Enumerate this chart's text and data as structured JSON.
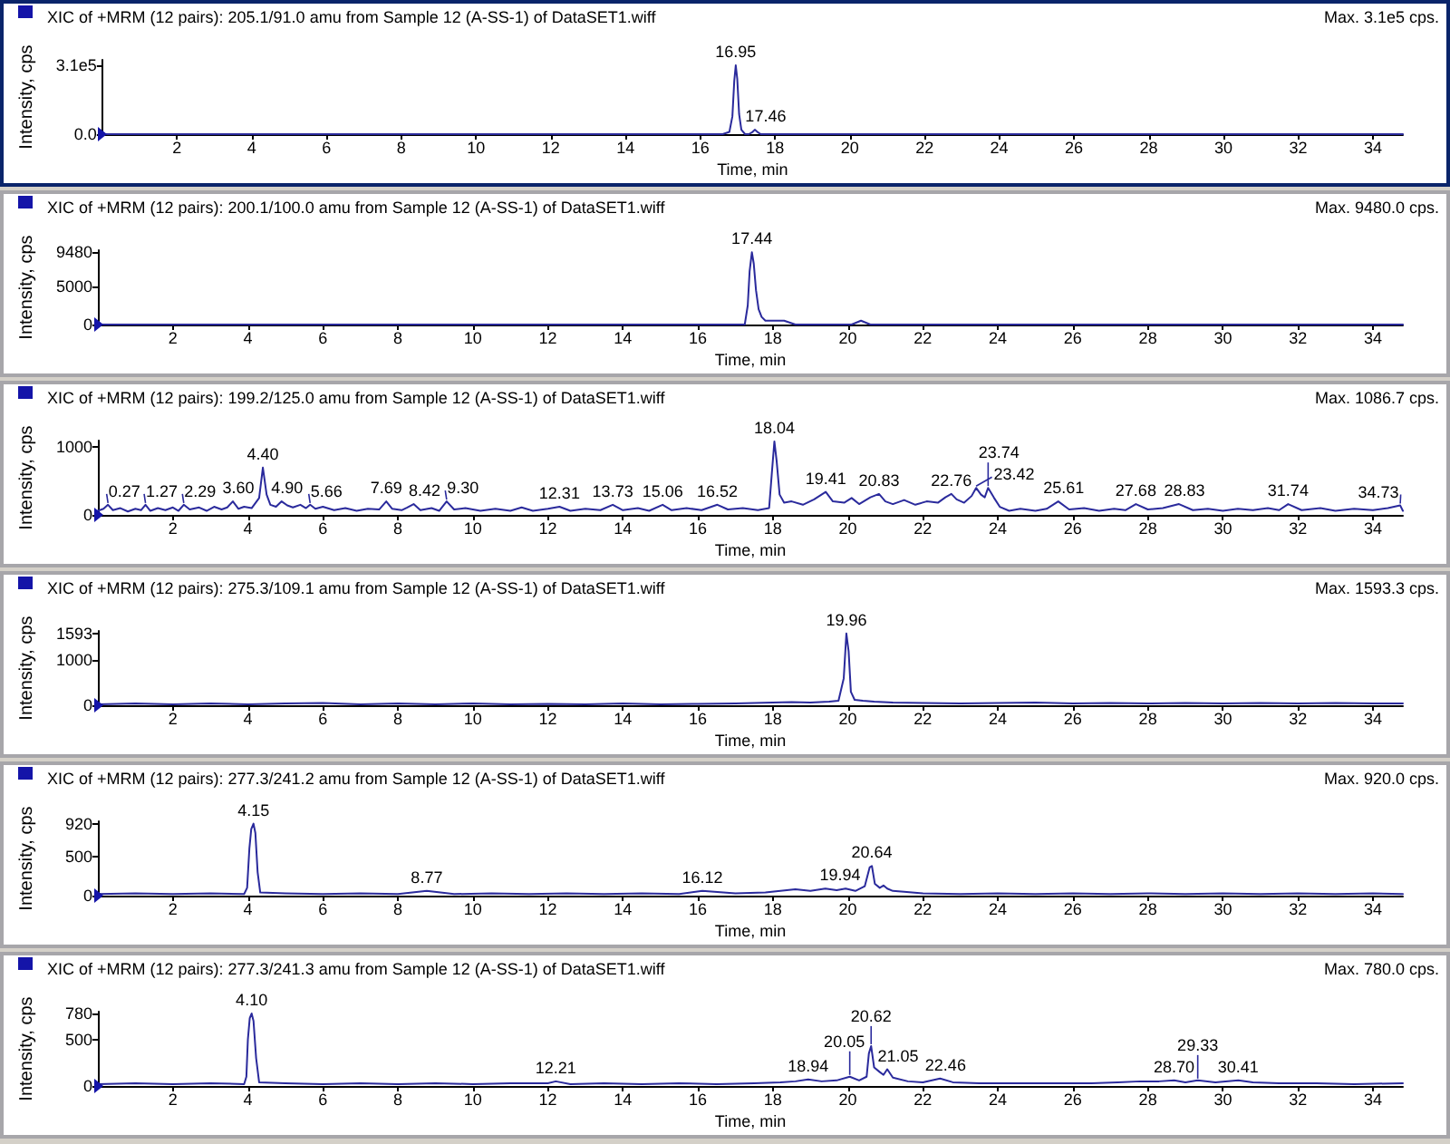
{
  "chart_data": [
    {
      "type": "line",
      "title": "XIC of +MRM (12 pairs): 205.1/91.0 amu from Sample 12 (A-SS-1) of DataSET1.wiff",
      "subtitle": "Max. 3.1e5 cps.",
      "xlabel": "Time, min",
      "ylabel": "Intensity, cps",
      "xlim": [
        0,
        34.8
      ],
      "xticks": [
        2,
        4,
        6,
        8,
        10,
        12,
        14,
        16,
        18,
        20,
        22,
        24,
        26,
        28,
        30,
        32,
        34
      ],
      "ylim": [
        0,
        335000
      ],
      "yticks": [
        {
          "value": 0,
          "label": "0.0"
        },
        {
          "value": 310000,
          "label": "3.1e5"
        }
      ],
      "series": [
        {
          "color": "#2a2a9c",
          "x": [
            0,
            1,
            3,
            5,
            7,
            9,
            11,
            13,
            15,
            16.6,
            16.78,
            16.86,
            16.91,
            16.95,
            16.99,
            17.04,
            17.1,
            17.2,
            17.3,
            17.4,
            17.46,
            17.53,
            17.62,
            17.8,
            18.5,
            20,
            23,
            26,
            29,
            32,
            34.8
          ],
          "values": [
            0,
            0,
            0,
            0,
            0,
            0,
            0,
            0,
            0,
            0,
            10000,
            80000,
            240000,
            310000,
            250000,
            90000,
            20000,
            0,
            0,
            10000,
            20000,
            10000,
            0,
            0,
            0,
            0,
            0,
            0,
            0,
            0,
            0
          ]
        }
      ],
      "annotations": [
        {
          "text": "16.95",
          "x": 16.95,
          "y": 310000
        },
        {
          "text": "17.46",
          "x": 17.46,
          "y": 20000
        }
      ]
    },
    {
      "type": "line",
      "title": "XIC of +MRM (12 pairs): 200.1/100.0 amu from Sample 12 (A-SS-1) of DataSET1.wiff",
      "subtitle": "Max. 9480.0 cps.",
      "xlabel": "Time, min",
      "ylabel": "Intensity, cps",
      "xlim": [
        0,
        34.8
      ],
      "xticks": [
        2,
        4,
        6,
        8,
        10,
        12,
        14,
        16,
        18,
        20,
        22,
        24,
        26,
        28,
        30,
        32,
        34
      ],
      "ylim": [
        0,
        9750
      ],
      "yticks": [
        0,
        5000,
        9480
      ],
      "series": [
        {
          "color": "#2a2a9c",
          "x": [
            0,
            2,
            4,
            6,
            8,
            10,
            12,
            14,
            16,
            17.0,
            17.25,
            17.33,
            17.38,
            17.44,
            17.49,
            17.55,
            17.62,
            17.7,
            17.8,
            18.0,
            18.3,
            18.6,
            19.0,
            19.4,
            19.8,
            20.1,
            20.35,
            20.6,
            21,
            23,
            26,
            29,
            32,
            34.8
          ],
          "values": [
            0,
            0,
            0,
            0,
            0,
            0,
            0,
            0,
            0,
            0,
            0,
            2500,
            7000,
            9480,
            8000,
            4500,
            2000,
            1000,
            500,
            500,
            500,
            0,
            0,
            0,
            0,
            0,
            500,
            0,
            0,
            0,
            0,
            0,
            0,
            0
          ]
        }
      ],
      "annotations": [
        {
          "text": "17.44",
          "x": 17.44,
          "y": 9480
        }
      ]
    },
    {
      "type": "line",
      "title": "XIC of +MRM (12 pairs): 199.2/125.0 amu from Sample 12 (A-SS-1) of DataSET1.wiff",
      "subtitle": "Max. 1086.7 cps.",
      "xlabel": "Time, min",
      "ylabel": "Intensity, cps",
      "xlim": [
        0,
        34.8
      ],
      "xticks": [
        2,
        4,
        6,
        8,
        10,
        12,
        14,
        16,
        18,
        20,
        22,
        24,
        26,
        28,
        30,
        32,
        34
      ],
      "ylim": [
        0,
        1100
      ],
      "yticks": [
        0,
        1000
      ],
      "series": [
        {
          "color": "#2a2a9c",
          "x": [
            0,
            0.15,
            0.27,
            0.4,
            0.6,
            0.8,
            1.0,
            1.15,
            1.27,
            1.4,
            1.6,
            1.8,
            2.0,
            2.15,
            2.29,
            2.45,
            2.7,
            2.9,
            3.1,
            3.3,
            3.45,
            3.6,
            3.75,
            3.9,
            4.1,
            4.3,
            4.4,
            4.5,
            4.6,
            4.75,
            4.9,
            5.05,
            5.2,
            5.4,
            5.55,
            5.66,
            5.8,
            6.0,
            6.3,
            6.6,
            6.9,
            7.2,
            7.5,
            7.69,
            7.85,
            8.1,
            8.25,
            8.42,
            8.6,
            8.9,
            9.1,
            9.3,
            9.5,
            9.8,
            10.2,
            10.6,
            11.0,
            11.3,
            11.6,
            12.0,
            12.31,
            12.6,
            13.0,
            13.4,
            13.73,
            14.0,
            14.4,
            14.7,
            15.06,
            15.3,
            15.7,
            16.1,
            16.52,
            16.8,
            17.2,
            17.6,
            17.9,
            17.97,
            18.04,
            18.1,
            18.18,
            18.3,
            18.5,
            18.8,
            19.1,
            19.41,
            19.6,
            19.9,
            20.1,
            20.3,
            20.6,
            20.83,
            21.0,
            21.2,
            21.5,
            21.8,
            22.1,
            22.4,
            22.6,
            22.76,
            22.9,
            23.1,
            23.3,
            23.42,
            23.55,
            23.65,
            23.74,
            23.9,
            24.05,
            24.3,
            24.6,
            25.0,
            25.3,
            25.61,
            25.9,
            26.3,
            26.7,
            27.1,
            27.4,
            27.68,
            28.0,
            28.4,
            28.83,
            29.2,
            29.6,
            30.0,
            30.4,
            30.8,
            31.2,
            31.5,
            31.74,
            32.1,
            32.6,
            33.0,
            33.5,
            34.0,
            34.4,
            34.73,
            34.8
          ],
          "values": [
            60,
            90,
            150,
            70,
            100,
            50,
            90,
            70,
            150,
            60,
            100,
            70,
            110,
            60,
            150,
            80,
            110,
            60,
            120,
            80,
            110,
            200,
            90,
            120,
            100,
            250,
            700,
            300,
            150,
            120,
            200,
            140,
            110,
            150,
            100,
            150,
            90,
            120,
            70,
            100,
            60,
            90,
            80,
            200,
            90,
            70,
            110,
            160,
            70,
            100,
            60,
            200,
            80,
            100,
            60,
            90,
            60,
            110,
            60,
            90,
            120,
            60,
            90,
            70,
            150,
            70,
            100,
            60,
            150,
            70,
            100,
            70,
            150,
            80,
            100,
            70,
            100,
            600,
            1087,
            800,
            300,
            180,
            200,
            150,
            230,
            340,
            200,
            180,
            250,
            160,
            260,
            310,
            200,
            160,
            220,
            150,
            200,
            180,
            260,
            310,
            230,
            180,
            280,
            400,
            300,
            260,
            400,
            250,
            120,
            60,
            90,
            60,
            90,
            200,
            80,
            100,
            60,
            90,
            70,
            160,
            80,
            100,
            160,
            70,
            90,
            60,
            90,
            70,
            100,
            70,
            160,
            70,
            100,
            60,
            90,
            70,
            100,
            140,
            60
          ]
        }
      ],
      "annotations": [
        {
          "text": "0.27",
          "x": 0.27,
          "y": 150
        },
        {
          "text": "1.27",
          "x": 1.27,
          "y": 150
        },
        {
          "text": "2.29",
          "x": 2.29,
          "y": 150
        },
        {
          "text": "3.60",
          "x": 3.6,
          "y": 200
        },
        {
          "text": "4.40",
          "x": 4.4,
          "y": 700
        },
        {
          "text": "4.90",
          "x": 4.9,
          "y": 200
        },
        {
          "text": "5.66",
          "x": 5.66,
          "y": 150
        },
        {
          "text": "7.69",
          "x": 7.69,
          "y": 200
        },
        {
          "text": "8.42",
          "x": 8.42,
          "y": 160
        },
        {
          "text": "9.30",
          "x": 9.3,
          "y": 200
        },
        {
          "text": "12.31",
          "x": 12.31,
          "y": 120
        },
        {
          "text": "13.73",
          "x": 13.73,
          "y": 150
        },
        {
          "text": "15.06",
          "x": 15.06,
          "y": 150
        },
        {
          "text": "16.52",
          "x": 16.52,
          "y": 150
        },
        {
          "text": "18.04",
          "x": 18.04,
          "y": 1087
        },
        {
          "text": "19.41",
          "x": 19.41,
          "y": 340
        },
        {
          "text": "20.83",
          "x": 20.83,
          "y": 310
        },
        {
          "text": "22.76",
          "x": 22.76,
          "y": 310
        },
        {
          "text": "23.42",
          "x": 23.42,
          "y": 400
        },
        {
          "text": "23.74",
          "x": 23.74,
          "y": 400
        },
        {
          "text": "25.61",
          "x": 25.61,
          "y": 200
        },
        {
          "text": "27.68",
          "x": 27.68,
          "y": 160
        },
        {
          "text": "28.83",
          "x": 28.83,
          "y": 160
        },
        {
          "text": "31.74",
          "x": 31.74,
          "y": 160
        },
        {
          "text": "34.73",
          "x": 34.73,
          "y": 140
        }
      ]
    },
    {
      "type": "line",
      "title": "XIC of +MRM (12 pairs): 275.3/109.1 amu from Sample 12 (A-SS-1) of DataSET1.wiff",
      "subtitle": "Max. 1593.3 cps.",
      "xlabel": "Time, min",
      "ylabel": "Intensity, cps",
      "xlim": [
        0,
        34.8
      ],
      "xticks": [
        2,
        4,
        6,
        8,
        10,
        12,
        14,
        16,
        18,
        20,
        22,
        24,
        26,
        28,
        30,
        32,
        34
      ],
      "ylim": [
        0,
        1650
      ],
      "yticks": [
        0,
        1000,
        1593
      ],
      "series": [
        {
          "color": "#2a2a9c",
          "x": [
            0,
            1,
            2,
            3,
            4,
            5,
            6,
            7,
            8,
            9,
            10,
            11,
            12,
            13,
            14,
            15,
            16,
            17,
            18,
            18.5,
            19,
            19.5,
            19.75,
            19.89,
            19.96,
            20.02,
            20.08,
            20.18,
            20.4,
            20.7,
            21.2,
            22,
            23,
            24,
            25,
            26,
            27,
            28,
            29,
            30,
            31,
            32,
            33,
            34,
            34.8
          ],
          "values": [
            20,
            40,
            20,
            40,
            20,
            40,
            50,
            20,
            40,
            20,
            40,
            20,
            30,
            20,
            40,
            20,
            30,
            40,
            60,
            70,
            60,
            80,
            100,
            600,
            1593,
            1200,
            300,
            120,
            100,
            80,
            60,
            50,
            40,
            50,
            60,
            40,
            50,
            40,
            50,
            40,
            50,
            40,
            50,
            40,
            40
          ]
        }
      ],
      "annotations": [
        {
          "text": "19.96",
          "x": 19.96,
          "y": 1593
        }
      ]
    },
    {
      "type": "line",
      "title": "XIC of +MRM (12 pairs): 277.3/241.2 amu from Sample 12 (A-SS-1) of DataSET1.wiff",
      "subtitle": "Max. 920.0 cps.",
      "xlabel": "Time, min",
      "ylabel": "Intensity, cps",
      "xlim": [
        0,
        34.8
      ],
      "xticks": [
        2,
        4,
        6,
        8,
        10,
        12,
        14,
        16,
        18,
        20,
        22,
        24,
        26,
        28,
        30,
        32,
        34
      ],
      "ylim": [
        0,
        950
      ],
      "yticks": [
        0,
        500,
        920
      ],
      "series": [
        {
          "color": "#2a2a9c",
          "x": [
            0,
            1,
            2,
            3,
            3.9,
            3.98,
            4.04,
            4.09,
            4.15,
            4.2,
            4.26,
            4.33,
            5,
            6,
            7,
            8,
            8.77,
            9.5,
            10.5,
            11.5,
            12.5,
            13.5,
            14.5,
            15.5,
            16.12,
            17,
            17.8,
            18.2,
            18.6,
            19.0,
            19.4,
            19.7,
            19.94,
            20.2,
            20.45,
            20.58,
            20.64,
            20.72,
            20.85,
            20.95,
            21.05,
            21.2,
            21.5,
            22,
            23,
            24,
            25,
            26,
            27,
            28,
            29,
            30,
            31,
            32,
            33,
            34,
            34.8
          ],
          "values": [
            20,
            30,
            20,
            30,
            20,
            100,
            600,
            850,
            920,
            800,
            300,
            40,
            30,
            20,
            30,
            20,
            60,
            20,
            30,
            20,
            30,
            20,
            30,
            20,
            60,
            30,
            40,
            60,
            80,
            60,
            90,
            70,
            90,
            60,
            120,
            360,
            380,
            150,
            100,
            130,
            90,
            60,
            50,
            30,
            20,
            30,
            20,
            30,
            20,
            30,
            20,
            30,
            20,
            30,
            20,
            30,
            20
          ]
        }
      ],
      "annotations": [
        {
          "text": "4.15",
          "x": 4.15,
          "y": 920
        },
        {
          "text": "8.77",
          "x": 8.77,
          "y": 60
        },
        {
          "text": "16.12",
          "x": 16.12,
          "y": 60
        },
        {
          "text": "19.94",
          "x": 19.94,
          "y": 90
        },
        {
          "text": "20.64",
          "x": 20.64,
          "y": 380
        }
      ]
    },
    {
      "type": "line",
      "title": "XIC of +MRM (12 pairs): 277.3/241.3 amu from Sample 12 (A-SS-1) of DataSET1.wiff",
      "subtitle": "Max. 780.0 cps.",
      "xlabel": "Time, min",
      "ylabel": "Intensity, cps",
      "xlim": [
        0,
        34.8
      ],
      "xticks": [
        2,
        4,
        6,
        8,
        10,
        12,
        14,
        16,
        18,
        20,
        22,
        24,
        26,
        28,
        30,
        32,
        34
      ],
      "ylim": [
        0,
        800
      ],
      "yticks": [
        0,
        500,
        780
      ],
      "series": [
        {
          "color": "#2a2a9c",
          "x": [
            0,
            1,
            2,
            3,
            3.9,
            3.96,
            4.0,
            4.05,
            4.1,
            4.15,
            4.22,
            4.3,
            5,
            6,
            7,
            8,
            9,
            10,
            11,
            12,
            12.21,
            12.6,
            13.5,
            14.5,
            15.5,
            16.5,
            17.5,
            18.2,
            18.6,
            18.94,
            19.3,
            19.7,
            20.05,
            20.3,
            20.5,
            20.56,
            20.62,
            20.7,
            20.85,
            20.95,
            21.05,
            21.2,
            21.6,
            22.0,
            22.46,
            22.8,
            23.5,
            24.5,
            25.5,
            26.5,
            27.2,
            27.8,
            28.3,
            28.7,
            29.0,
            29.33,
            29.8,
            30.41,
            30.8,
            31.5,
            32.5,
            33.5,
            34.8
          ],
          "values": [
            20,
            30,
            20,
            30,
            20,
            100,
            500,
            730,
            780,
            700,
            300,
            40,
            30,
            20,
            30,
            20,
            30,
            20,
            30,
            30,
            50,
            20,
            30,
            20,
            30,
            20,
            30,
            40,
            50,
            70,
            50,
            60,
            100,
            60,
            100,
            350,
            430,
            200,
            150,
            120,
            180,
            90,
            50,
            40,
            80,
            40,
            30,
            30,
            30,
            30,
            40,
            50,
            50,
            60,
            40,
            60,
            40,
            60,
            40,
            30,
            30,
            20,
            30
          ]
        }
      ],
      "annotations": [
        {
          "text": "4.10",
          "x": 4.1,
          "y": 780
        },
        {
          "text": "12.21",
          "x": 12.21,
          "y": 50
        },
        {
          "text": "18.94",
          "x": 18.94,
          "y": 70
        },
        {
          "text": "20.05",
          "x": 20.05,
          "y": 100
        },
        {
          "text": "20.62",
          "x": 20.62,
          "y": 430
        },
        {
          "text": "21.05",
          "x": 21.05,
          "y": 180
        },
        {
          "text": "22.46",
          "x": 22.46,
          "y": 80
        },
        {
          "text": "28.70",
          "x": 28.7,
          "y": 60
        },
        {
          "text": "29.33",
          "x": 29.33,
          "y": 60
        },
        {
          "text": "30.41",
          "x": 30.41,
          "y": 60
        }
      ]
    }
  ]
}
